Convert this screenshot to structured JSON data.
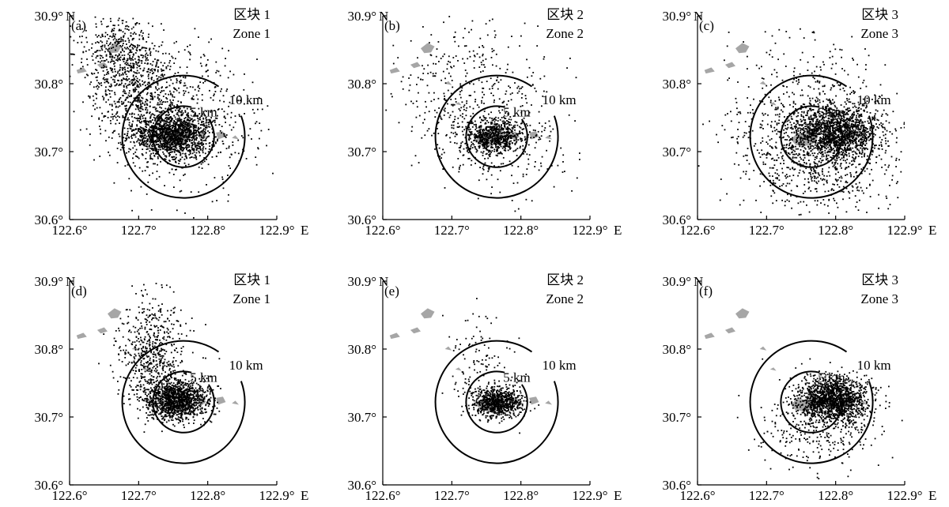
{
  "figure": {
    "x_unit": "E",
    "y_unit": "N",
    "x_ticks": [
      "122.6°",
      "122.7°",
      "122.8°",
      "122.9°"
    ],
    "x_tick_values": [
      122.6,
      122.7,
      122.8,
      122.9
    ],
    "y_ticks": [
      "30.6°",
      "30.7°",
      "30.8°",
      "30.9°"
    ],
    "y_tick_values": [
      30.6,
      30.7,
      30.8,
      30.9
    ],
    "ring_labels": [
      "5 km",
      "10 km"
    ],
    "colors": {
      "points": "#000000",
      "islands": "#a6a6a6",
      "axes": "#000000"
    }
  },
  "chart_data": [
    {
      "type": "scatter",
      "panel": "(a)",
      "zone_cn": "区块 1",
      "zone_en": "Zone 1",
      "xlim": [
        122.6,
        122.9
      ],
      "ylim": [
        30.6,
        30.9
      ],
      "center": [
        122.765,
        30.722
      ],
      "rings_km": [
        5,
        10
      ],
      "clusters": [
        {
          "cx": 122.75,
          "cy": 30.725,
          "sx": 0.028,
          "sy": 0.016,
          "n": 1400
        },
        {
          "cx": 122.7,
          "cy": 30.79,
          "sx": 0.035,
          "sy": 0.04,
          "n": 700
        },
        {
          "cx": 122.67,
          "cy": 30.85,
          "sx": 0.03,
          "sy": 0.03,
          "n": 350
        },
        {
          "cx": 122.77,
          "cy": 30.74,
          "sx": 0.06,
          "sy": 0.05,
          "n": 450
        }
      ]
    },
    {
      "type": "scatter",
      "panel": "(b)",
      "zone_cn": "区块 2",
      "zone_en": "Zone 2",
      "xlim": [
        122.6,
        122.9
      ],
      "ylim": [
        30.6,
        30.9
      ],
      "center": [
        122.765,
        30.722
      ],
      "rings_km": [
        5,
        10
      ],
      "clusters": [
        {
          "cx": 122.76,
          "cy": 30.722,
          "sx": 0.022,
          "sy": 0.012,
          "n": 650
        },
        {
          "cx": 122.72,
          "cy": 30.8,
          "sx": 0.05,
          "sy": 0.05,
          "n": 320
        },
        {
          "cx": 122.77,
          "cy": 30.72,
          "sx": 0.05,
          "sy": 0.045,
          "n": 300
        }
      ]
    },
    {
      "type": "scatter",
      "panel": "(c)",
      "zone_cn": "区块 3",
      "zone_en": "Zone 3",
      "xlim": [
        122.6,
        122.9
      ],
      "ylim": [
        30.6,
        30.9
      ],
      "center": [
        122.765,
        30.722
      ],
      "rings_km": [
        5,
        10
      ],
      "clusters": [
        {
          "cx": 122.8,
          "cy": 30.728,
          "sx": 0.03,
          "sy": 0.02,
          "n": 1400
        },
        {
          "cx": 122.77,
          "cy": 30.7,
          "sx": 0.06,
          "sy": 0.045,
          "n": 900
        },
        {
          "cx": 122.75,
          "cy": 30.8,
          "sx": 0.06,
          "sy": 0.05,
          "n": 220
        }
      ]
    },
    {
      "type": "scatter",
      "panel": "(d)",
      "zone_cn": "区块 1",
      "zone_en": "Zone 1",
      "xlim": [
        122.6,
        122.9
      ],
      "ylim": [
        30.6,
        30.9
      ],
      "center": [
        122.765,
        30.722
      ],
      "rings_km": [
        5,
        10
      ],
      "clusters": [
        {
          "cx": 122.755,
          "cy": 30.725,
          "sx": 0.024,
          "sy": 0.015,
          "n": 1300
        },
        {
          "cx": 122.72,
          "cy": 30.785,
          "sx": 0.025,
          "sy": 0.035,
          "n": 500
        },
        {
          "cx": 122.72,
          "cy": 30.85,
          "sx": 0.015,
          "sy": 0.03,
          "n": 90
        }
      ]
    },
    {
      "type": "scatter",
      "panel": "(e)",
      "zone_cn": "区块 2",
      "zone_en": "Zone 2",
      "xlim": [
        122.6,
        122.9
      ],
      "ylim": [
        30.6,
        30.9
      ],
      "center": [
        122.765,
        30.722
      ],
      "rings_km": [
        5,
        10
      ],
      "clusters": [
        {
          "cx": 122.765,
          "cy": 30.722,
          "sx": 0.018,
          "sy": 0.011,
          "n": 800
        },
        {
          "cx": 122.74,
          "cy": 30.78,
          "sx": 0.025,
          "sy": 0.035,
          "n": 110
        }
      ]
    },
    {
      "type": "scatter",
      "panel": "(f)",
      "zone_cn": "区块 3",
      "zone_en": "Zone 3",
      "xlim": [
        122.6,
        122.9
      ],
      "ylim": [
        30.6,
        30.9
      ],
      "center": [
        122.765,
        30.722
      ],
      "rings_km": [
        5,
        10
      ],
      "clusters": [
        {
          "cx": 122.795,
          "cy": 30.725,
          "sx": 0.026,
          "sy": 0.017,
          "n": 1500
        },
        {
          "cx": 122.78,
          "cy": 30.69,
          "sx": 0.045,
          "sy": 0.03,
          "n": 300
        }
      ]
    }
  ]
}
